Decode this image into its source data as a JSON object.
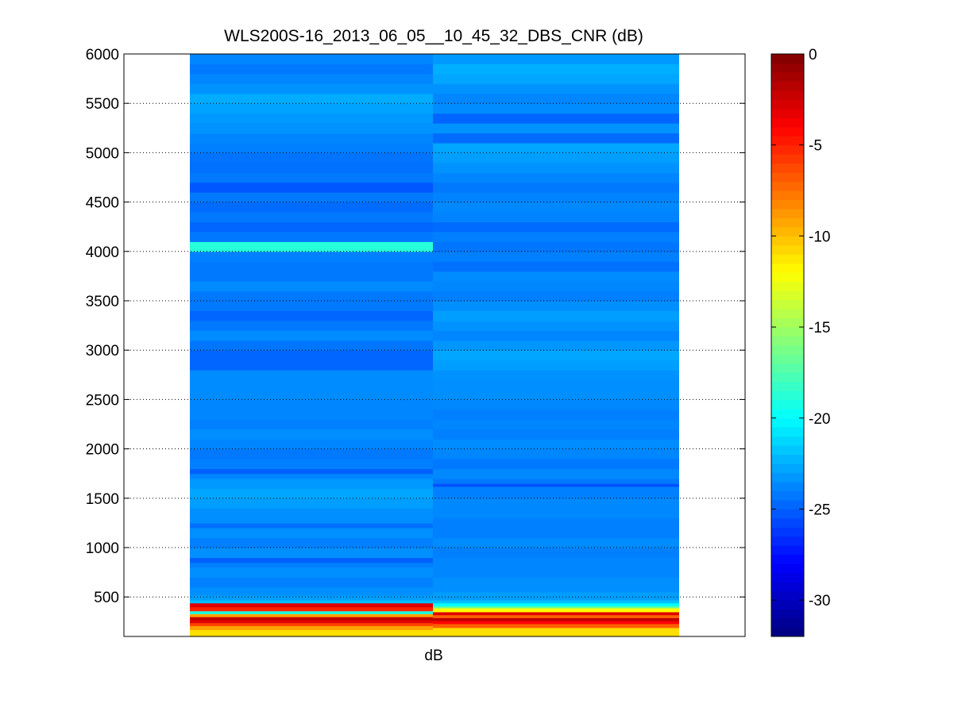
{
  "chart_data": {
    "type": "heatmap",
    "title": "WLS200S-16_2013_06_05__10_45_32_DBS_CNR (dB)",
    "xlabel": "dB",
    "ylabel": "",
    "ylim": [
      100,
      6000
    ],
    "yticks": [
      500,
      1000,
      1500,
      2000,
      2500,
      3000,
      3500,
      4000,
      4500,
      5000,
      5500,
      6000
    ],
    "grid": "horizontal dotted",
    "colormap": "jet",
    "colorbar": {
      "range": [
        -32,
        0
      ],
      "ticks": [
        0,
        -5,
        -10,
        -15,
        -20,
        -25,
        -30
      ],
      "placement": "right"
    },
    "columns": [
      {
        "bands": [
          [
            100,
            170,
            -11
          ],
          [
            170,
            210,
            -9
          ],
          [
            210,
            240,
            -6
          ],
          [
            240,
            270,
            -3
          ],
          [
            270,
            300,
            -2
          ],
          [
            300,
            330,
            -9
          ],
          [
            330,
            360,
            -19
          ],
          [
            360,
            400,
            -5
          ],
          [
            400,
            440,
            -3
          ],
          [
            440,
            470,
            -22
          ],
          [
            470,
            520,
            -23
          ],
          [
            520,
            600,
            -23.5
          ],
          [
            600,
            700,
            -24
          ],
          [
            700,
            800,
            -23.5
          ],
          [
            800,
            850,
            -24
          ],
          [
            850,
            900,
            -25
          ],
          [
            900,
            1000,
            -23.5
          ],
          [
            1000,
            1100,
            -24
          ],
          [
            1100,
            1200,
            -23.5
          ],
          [
            1200,
            1250,
            -24.5
          ],
          [
            1250,
            1400,
            -23.5
          ],
          [
            1400,
            1500,
            -23
          ],
          [
            1500,
            1600,
            -22.8
          ],
          [
            1600,
            1700,
            -23.2
          ],
          [
            1700,
            1750,
            -23.8
          ],
          [
            1750,
            1800,
            -25
          ],
          [
            1800,
            1900,
            -24
          ],
          [
            1900,
            2000,
            -24.2
          ],
          [
            2000,
            2100,
            -23.8
          ],
          [
            2100,
            2200,
            -23.5
          ],
          [
            2200,
            2300,
            -24
          ],
          [
            2300,
            2500,
            -23.8
          ],
          [
            2500,
            2800,
            -23.6
          ],
          [
            2800,
            3000,
            -24.8
          ],
          [
            3000,
            3100,
            -24.3
          ],
          [
            3100,
            3200,
            -23.6
          ],
          [
            3200,
            3300,
            -24.2
          ],
          [
            3300,
            3400,
            -24.8
          ],
          [
            3400,
            3600,
            -24.2
          ],
          [
            3600,
            3700,
            -23.6
          ],
          [
            3700,
            3900,
            -24.2
          ],
          [
            3900,
            4000,
            -24
          ],
          [
            4000,
            4100,
            -18.8
          ],
          [
            4100,
            4200,
            -24.2
          ],
          [
            4200,
            4300,
            -24.8
          ],
          [
            4300,
            4400,
            -24.2
          ],
          [
            4400,
            4500,
            -24.6
          ],
          [
            4500,
            4600,
            -24.2
          ],
          [
            4600,
            4700,
            -25.3
          ],
          [
            4700,
            4800,
            -24.2
          ],
          [
            4800,
            4900,
            -24.5
          ],
          [
            4900,
            5000,
            -24.4
          ],
          [
            5000,
            5100,
            -24
          ],
          [
            5100,
            5200,
            -23.8
          ],
          [
            5200,
            5300,
            -23.4
          ],
          [
            5300,
            5400,
            -23.2
          ],
          [
            5400,
            5500,
            -22.9
          ],
          [
            5500,
            5600,
            -22.6
          ],
          [
            5600,
            5700,
            -23.4
          ],
          [
            5700,
            5800,
            -23.8
          ],
          [
            5800,
            5900,
            -24.2
          ],
          [
            5900,
            6000,
            -23.8
          ]
        ]
      },
      {
        "bands": [
          [
            100,
            190,
            -11
          ],
          [
            190,
            230,
            -7
          ],
          [
            230,
            260,
            -4
          ],
          [
            260,
            290,
            -2
          ],
          [
            290,
            320,
            -7
          ],
          [
            320,
            350,
            -3
          ],
          [
            350,
            390,
            -12
          ],
          [
            390,
            410,
            -17
          ],
          [
            410,
            440,
            -20
          ],
          [
            440,
            470,
            -22
          ],
          [
            470,
            550,
            -23
          ],
          [
            550,
            700,
            -23.5
          ],
          [
            700,
            900,
            -23.8
          ],
          [
            900,
            1000,
            -24
          ],
          [
            1000,
            1100,
            -23.6
          ],
          [
            1100,
            1300,
            -24
          ],
          [
            1300,
            1500,
            -23.7
          ],
          [
            1500,
            1620,
            -24
          ],
          [
            1620,
            1650,
            -25.5
          ],
          [
            1650,
            1700,
            -24.2
          ],
          [
            1700,
            1800,
            -23.7
          ],
          [
            1800,
            1900,
            -24.2
          ],
          [
            1900,
            2000,
            -23.8
          ],
          [
            2000,
            2100,
            -23.6
          ],
          [
            2100,
            2200,
            -24
          ],
          [
            2200,
            2300,
            -23.8
          ],
          [
            2300,
            2400,
            -24
          ],
          [
            2400,
            2500,
            -23.7
          ],
          [
            2500,
            2700,
            -23.5
          ],
          [
            2700,
            2800,
            -23.4
          ],
          [
            2800,
            2900,
            -23
          ],
          [
            2900,
            3000,
            -22.8
          ],
          [
            3000,
            3100,
            -23.3
          ],
          [
            3100,
            3200,
            -23.8
          ],
          [
            3200,
            3300,
            -23.4
          ],
          [
            3300,
            3400,
            -23
          ],
          [
            3400,
            3500,
            -23.5
          ],
          [
            3500,
            3600,
            -24
          ],
          [
            3600,
            3700,
            -23.8
          ],
          [
            3700,
            3800,
            -23.6
          ],
          [
            3800,
            3900,
            -24.5
          ],
          [
            3900,
            4000,
            -24
          ],
          [
            4000,
            4100,
            -24.3
          ],
          [
            4100,
            4200,
            -24
          ],
          [
            4200,
            4300,
            -24.6
          ],
          [
            4300,
            4400,
            -23.9
          ],
          [
            4400,
            4500,
            -23.7
          ],
          [
            4500,
            4600,
            -23.9
          ],
          [
            4600,
            4700,
            -24.2
          ],
          [
            4700,
            4800,
            -23.8
          ],
          [
            4800,
            4900,
            -23.4
          ],
          [
            4900,
            5000,
            -23
          ],
          [
            5000,
            5100,
            -22.8
          ],
          [
            5100,
            5200,
            -24.6
          ],
          [
            5200,
            5300,
            -23.4
          ],
          [
            5300,
            5400,
            -24.8
          ],
          [
            5400,
            5500,
            -23.6
          ],
          [
            5500,
            5600,
            -23.8
          ],
          [
            5600,
            5700,
            -23.4
          ],
          [
            5700,
            5800,
            -22.8
          ],
          [
            5800,
            5900,
            -22.5
          ],
          [
            5900,
            6000,
            -23.2
          ]
        ]
      }
    ]
  }
}
